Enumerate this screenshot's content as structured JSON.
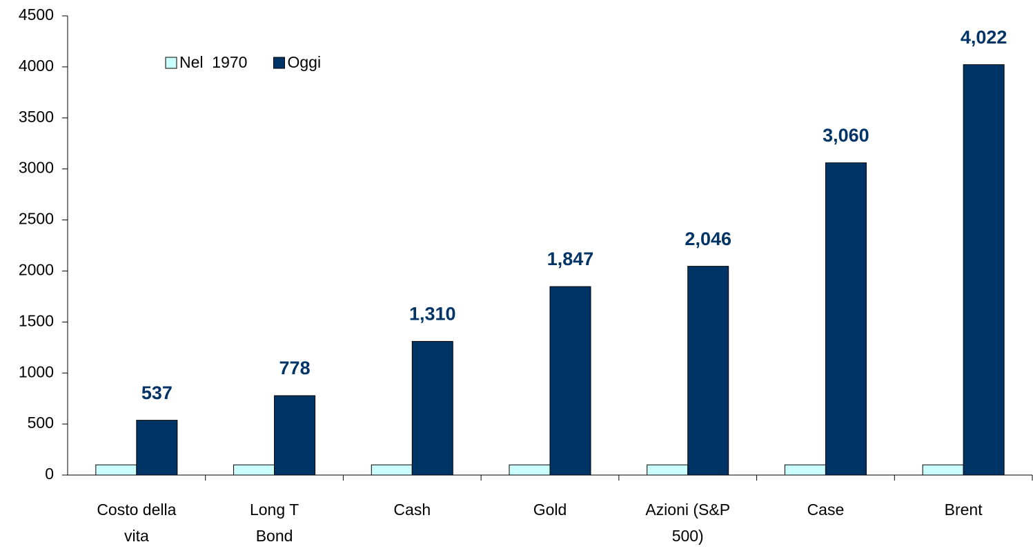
{
  "chart_data": {
    "type": "bar",
    "categories": [
      "Costo della\nvita",
      "Long T\nBond",
      "Cash",
      "Gold",
      "Azioni (S&P\n500)",
      "Case",
      "Brent"
    ],
    "series": [
      {
        "name": "Nel  1970",
        "color": "#ccffff",
        "values": [
          100,
          100,
          100,
          100,
          100,
          100,
          100
        ]
      },
      {
        "name": "Oggi",
        "color": "#003366",
        "values": [
          537,
          778,
          1310,
          1847,
          2046,
          3060,
          4022
        ],
        "value_labels": [
          "537",
          "778",
          "1,310",
          "1,847",
          "2,046",
          "3,060",
          "4,022"
        ]
      }
    ],
    "ylim": [
      0,
      4500
    ],
    "yticks": [
      0,
      500,
      1000,
      1500,
      2000,
      2500,
      3000,
      3500,
      4000,
      4500
    ],
    "grid": false,
    "legend": "top-left"
  }
}
